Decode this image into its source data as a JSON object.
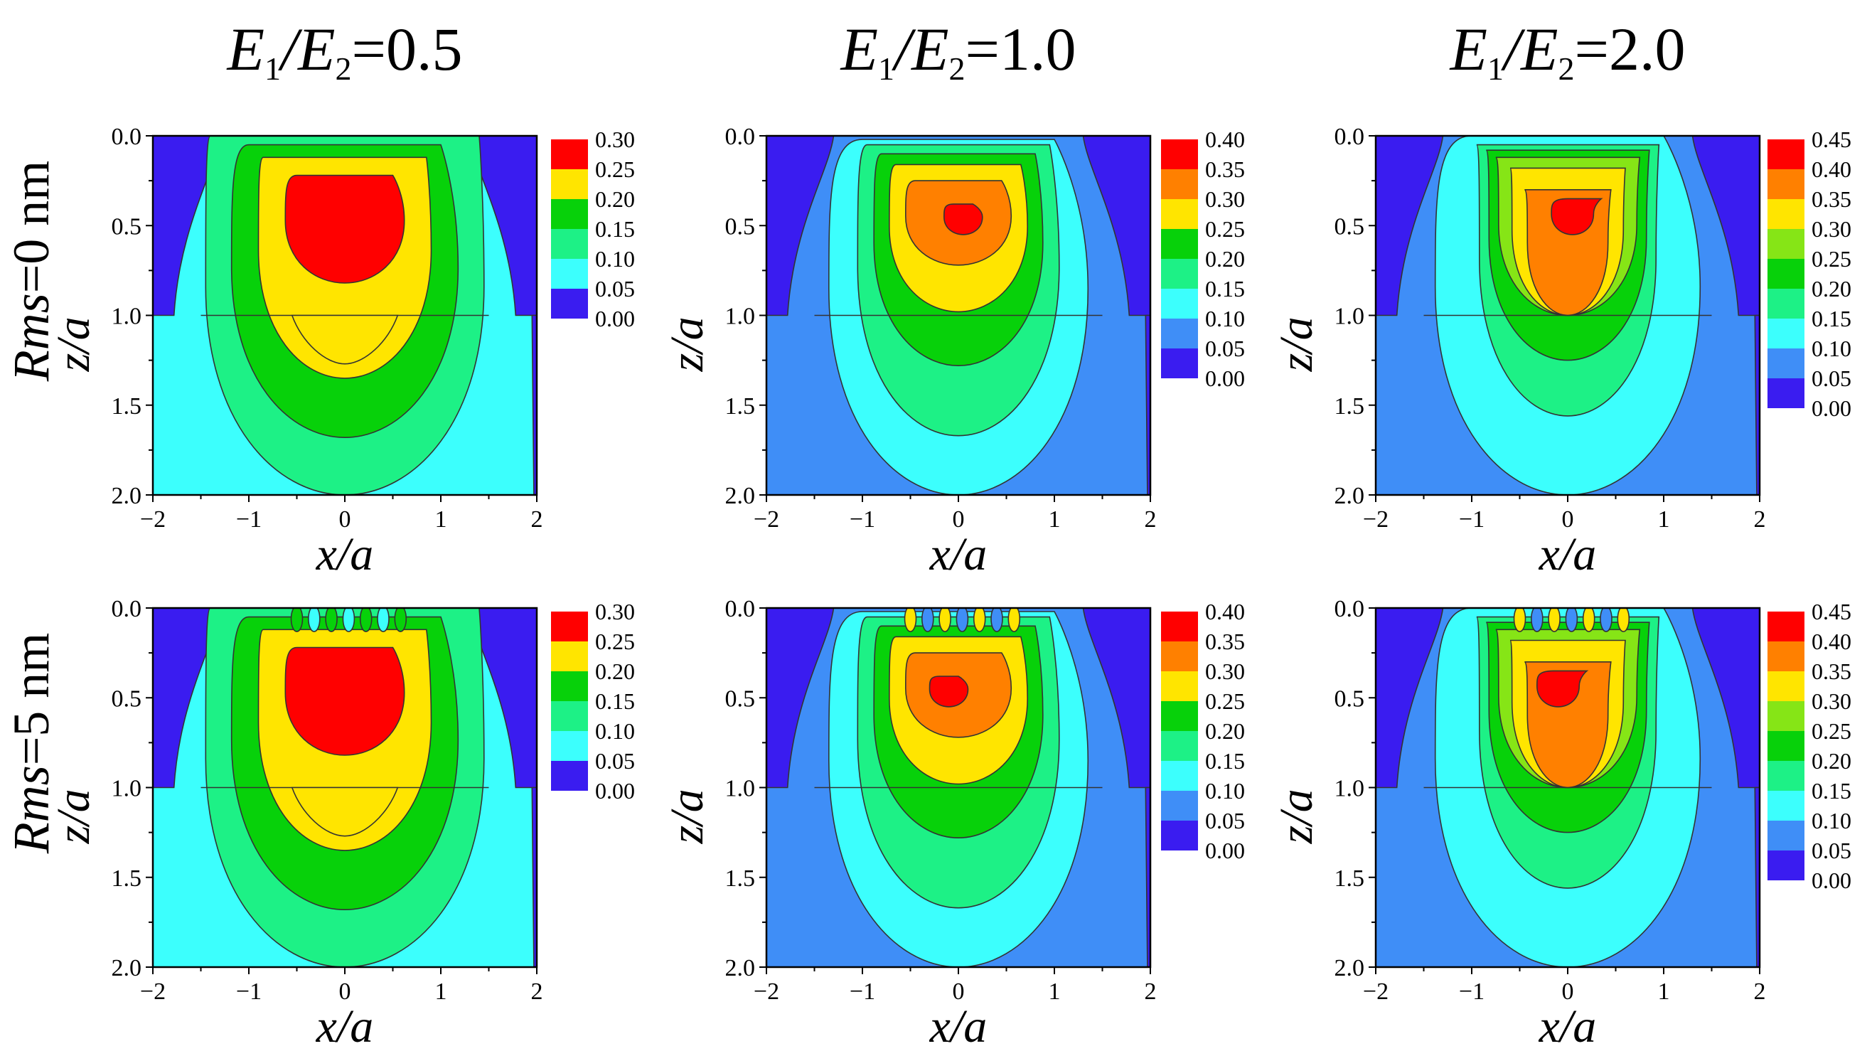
{
  "figure": {
    "columns": [
      {
        "prefix": "E",
        "sub1": "1",
        "slash": "/E",
        "sub2": "2",
        "value": "=0.5"
      },
      {
        "prefix": "E",
        "sub1": "1",
        "slash": "/E",
        "sub2": "2",
        "value": "=1.0"
      },
      {
        "prefix": "E",
        "sub1": "1",
        "slash": "/E",
        "sub2": "2",
        "value": "=2.0"
      }
    ],
    "rows": [
      {
        "italic": "Rms",
        "rest": "=0 nm"
      },
      {
        "italic": "Rms",
        "rest": "=5 nm"
      }
    ],
    "x_ticks": [
      "−2",
      "−1",
      "0",
      "1",
      "2"
    ],
    "z_ticks": [
      "0.0",
      "0.5",
      "1.0",
      "1.5",
      "2.0"
    ],
    "xlabel": "x/a",
    "ylabel": "z/a"
  },
  "chart_data": [
    {
      "type": "heatmap",
      "title": "E1/E2=0.5, Rms=0 nm",
      "xlabel": "x/a",
      "ylabel": "z/a",
      "xlim": [
        -2,
        2
      ],
      "ylim": [
        2.0,
        0.0
      ],
      "colorbar": {
        "levels": [
          "0.00",
          "0.05",
          "0.10",
          "0.15",
          "0.20",
          "0.25",
          "0.30"
        ],
        "colors": [
          "#3a1cf0",
          "#3cfffd",
          "#1df186",
          "#07d10a",
          "#ffe500",
          "#ff0000"
        ]
      },
      "max_value": 0.3,
      "max_location": [
        0,
        0.5
      ]
    },
    {
      "type": "heatmap",
      "title": "E1/E2=1.0, Rms=0 nm",
      "xlabel": "x/a",
      "ylabel": "z/a",
      "xlim": [
        -2,
        2
      ],
      "ylim": [
        2.0,
        0.0
      ],
      "colorbar": {
        "levels": [
          "0.00",
          "0.05",
          "0.10",
          "0.15",
          "0.20",
          "0.25",
          "0.30",
          "0.35",
          "0.40"
        ],
        "colors": [
          "#3a1cf0",
          "#3f8ef7",
          "#3cfffd",
          "#1df186",
          "#07d10a",
          "#ffe500",
          "#ff8000",
          "#ff0000"
        ]
      },
      "max_value": 0.4,
      "max_location": [
        0.05,
        0.45
      ]
    },
    {
      "type": "heatmap",
      "title": "E1/E2=2.0, Rms=0 nm",
      "xlabel": "x/a",
      "ylabel": "z/a",
      "xlim": [
        -2,
        2
      ],
      "ylim": [
        2.0,
        0.0
      ],
      "colorbar": {
        "levels": [
          "0.00",
          "0.05",
          "0.10",
          "0.15",
          "0.20",
          "0.25",
          "0.30",
          "0.35",
          "0.40",
          "0.45"
        ],
        "colors": [
          "#3a1cf0",
          "#3f8ef7",
          "#3cfffd",
          "#1df186",
          "#07d10a",
          "#86e516",
          "#ffe500",
          "#ff8000",
          "#ff0000"
        ]
      },
      "max_value": 0.45,
      "max_location": [
        0.1,
        0.45
      ]
    },
    {
      "type": "heatmap",
      "title": "E1/E2=0.5, Rms=5 nm",
      "xlabel": "x/a",
      "ylabel": "z/a",
      "xlim": [
        -2,
        2
      ],
      "ylim": [
        2.0,
        0.0
      ],
      "colorbar": {
        "levels": [
          "0.00",
          "0.05",
          "0.10",
          "0.15",
          "0.20",
          "0.25",
          "0.30"
        ],
        "colors": [
          "#3a1cf0",
          "#3cfffd",
          "#1df186",
          "#07d10a",
          "#ffe500",
          "#ff0000"
        ]
      },
      "max_value": 0.3,
      "max_location": [
        0,
        0.5
      ]
    },
    {
      "type": "heatmap",
      "title": "E1/E2=1.0, Rms=5 nm",
      "xlabel": "x/a",
      "ylabel": "z/a",
      "xlim": [
        -2,
        2
      ],
      "ylim": [
        2.0,
        0.0
      ],
      "colorbar": {
        "levels": [
          "0.00",
          "0.05",
          "0.10",
          "0.15",
          "0.20",
          "0.25",
          "0.30",
          "0.35",
          "0.40"
        ],
        "colors": [
          "#3a1cf0",
          "#3f8ef7",
          "#3cfffd",
          "#1df186",
          "#07d10a",
          "#ffe500",
          "#ff8000",
          "#ff0000"
        ]
      },
      "max_value": 0.4,
      "max_location": [
        -0.1,
        0.45
      ]
    },
    {
      "type": "heatmap",
      "title": "E1/E2=2.0, Rms=5 nm",
      "xlabel": "x/a",
      "ylabel": "z/a",
      "xlim": [
        -2,
        2
      ],
      "ylim": [
        2.0,
        0.0
      ],
      "colorbar": {
        "levels": [
          "0.00",
          "0.05",
          "0.10",
          "0.15",
          "0.20",
          "0.25",
          "0.30",
          "0.35",
          "0.40",
          "0.45"
        ],
        "colors": [
          "#3a1cf0",
          "#3f8ef7",
          "#3cfffd",
          "#1df186",
          "#07d10a",
          "#86e516",
          "#ffe500",
          "#ff8000",
          "#ff0000"
        ]
      },
      "max_value": 0.45,
      "max_location": [
        -0.1,
        0.45
      ]
    }
  ]
}
